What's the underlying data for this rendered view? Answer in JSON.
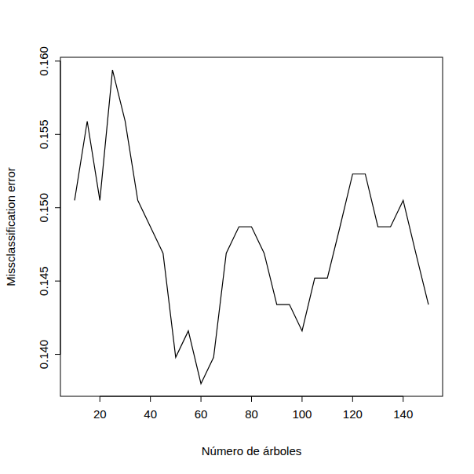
{
  "chart_data": {
    "type": "line",
    "x_label": "Número de árboles",
    "y_label": "Missclassification error",
    "x": [
      10,
      15,
      20,
      25,
      30,
      35,
      40,
      45,
      50,
      55,
      60,
      65,
      70,
      75,
      80,
      85,
      90,
      95,
      100,
      105,
      110,
      115,
      120,
      125,
      130,
      135,
      140,
      145,
      150
    ],
    "values": [
      0.1505,
      0.1559,
      0.1505,
      0.1594,
      0.1559,
      0.1505,
      0.1487,
      0.1469,
      0.1398,
      0.1416,
      0.138,
      0.1398,
      0.1469,
      0.1487,
      0.1487,
      0.1469,
      0.1434,
      0.1434,
      0.1416,
      0.1452,
      0.1452,
      0.1487,
      0.1523,
      0.1523,
      0.1487,
      0.1487,
      0.1505,
      0.1469,
      0.1434
    ],
    "color": "#000000",
    "xlim": [
      4.4,
      155.6
    ],
    "xticks": [
      20,
      40,
      60,
      80,
      100,
      120,
      140
    ],
    "ylim": [
      0.13714,
      0.16026
    ],
    "yticks": [
      {
        "value": 0.14,
        "label": "0.140"
      },
      0.145,
      {
        "value": 0.15,
        "label": "0.150"
      },
      0.155,
      {
        "value": 0.16,
        "label": "0.160"
      }
    ],
    "grid": false
  }
}
